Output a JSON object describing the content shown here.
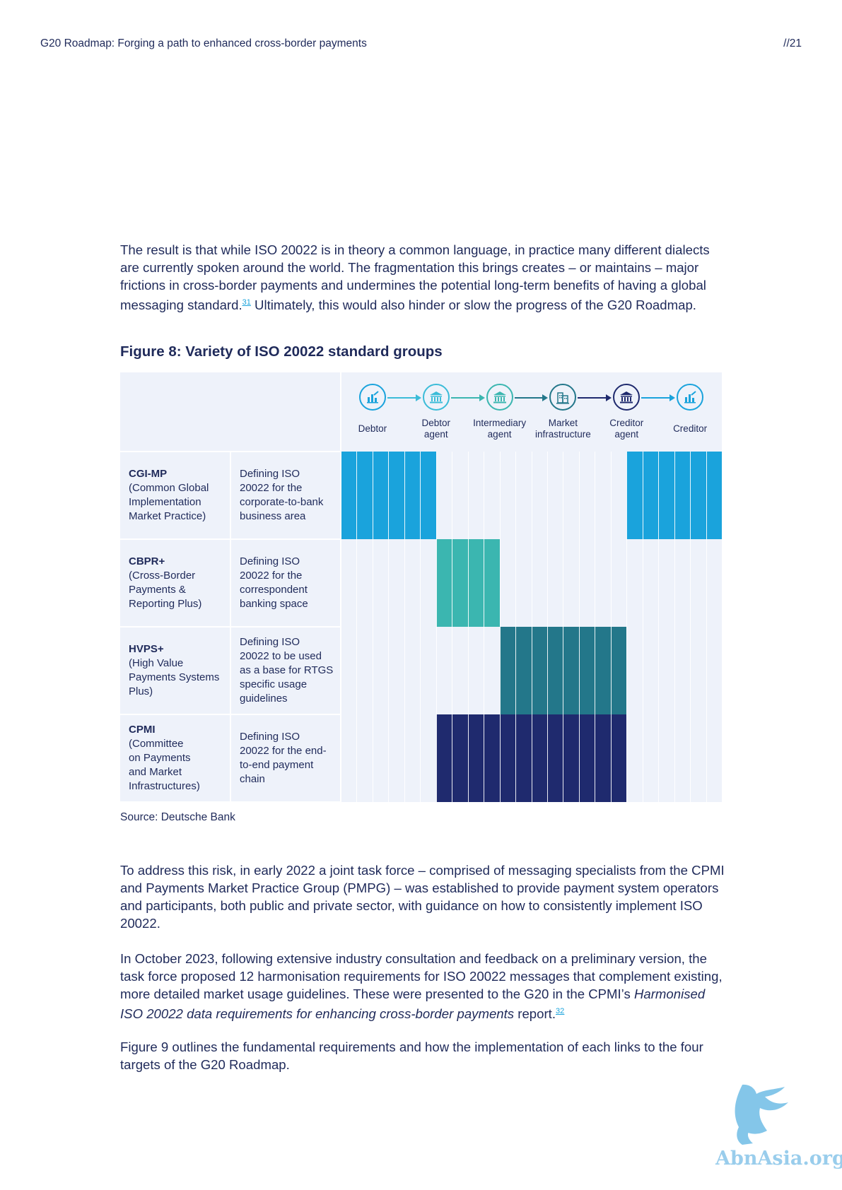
{
  "header": {
    "title": "G20 Roadmap: Forging a path to enhanced cross-border payments",
    "page": "//21"
  },
  "intro": {
    "text_before_ref": "The result is that while ISO 20022 is in theory a common language, in practice many different dialects are currently spoken around the world. The fragmentation this brings creates – or maintains – major frictions in cross-border payments and undermines the potential long-term benefits of having a global messaging standard.",
    "ref": "31",
    "text_after_ref": " Ultimately, this would also hinder or slow the progress of the G20 Roadmap."
  },
  "figure": {
    "title": "Figure 8: Variety of ISO 20022 standard groups",
    "source": "Source: Deutsche Bank",
    "parties": [
      {
        "line1": "Debtor",
        "line2": "",
        "icon": "chart-icon",
        "color": "#1aa3dc"
      },
      {
        "line1": "Debtor",
        "line2": "agent",
        "icon": "bank-icon",
        "color": "#3bbcd8"
      },
      {
        "line1": "Intermediary",
        "line2": "agent",
        "icon": "bank-icon",
        "color": "#3bb6b0"
      },
      {
        "line1": "Market",
        "line2": "infrastructure",
        "icon": "building-icon",
        "color": "#23778a"
      },
      {
        "line1": "Creditor",
        "line2": "agent",
        "icon": "bank-icon",
        "color": "#1f2a6e"
      },
      {
        "line1": "Creditor",
        "line2": "",
        "icon": "chart-icon",
        "color": "#1aa3dc"
      }
    ],
    "groups": [
      {
        "name": "CGI-MP",
        "full": [
          "(Common Global",
          "Implementation",
          "Market Practice)"
        ],
        "desc": [
          "Defining ISO",
          "20022 for the",
          "corporate-to-bank",
          "business area"
        ],
        "color": "#1aa3dc",
        "spans": [
          [
            0,
            6
          ],
          [
            18,
            24
          ]
        ]
      },
      {
        "name": "CBPR+",
        "full": [
          "(Cross-Border",
          "Payments &",
          "Reporting Plus)"
        ],
        "desc": [
          "Defining ISO",
          "20022 for the",
          "correspondent",
          "banking space"
        ],
        "color": "#3bb6b0",
        "spans": [
          [
            6,
            10
          ]
        ]
      },
      {
        "name": "HVPS+",
        "full": [
          "(High Value",
          "Payments Systems",
          "Plus)"
        ],
        "desc": [
          "Defining ISO",
          "20022 to be used",
          "as a base for RTGS",
          "specific usage",
          "guidelines"
        ],
        "color": "#23778a",
        "spans": [
          [
            10,
            18
          ]
        ]
      },
      {
        "name": "CPMI",
        "full": [
          "(Committee",
          "on Payments",
          "and Market",
          "Infrastructures)"
        ],
        "desc": [
          "Defining ISO",
          "20022 for the end-",
          "to-end payment",
          "chain"
        ],
        "color": "#1f2a6e",
        "spans": [
          [
            6,
            18
          ]
        ]
      }
    ]
  },
  "body": {
    "p2": "To address this risk, in early 2022 a joint task force – comprised of messaging specialists from the CPMI and Payments Market Practice Group (PMPG) – was established to provide payment system operators and participants, both public and private sector, with guidance on how to consistently implement ISO 20022.",
    "p3_before": "In October 2023, following extensive industry consultation and feedback on a preliminary version, the task force proposed 12 harmonisation requirements for ISO 20022 messages that complement existing, more detailed market usage guidelines. These were presented to the G20 in the CPMI’s ",
    "p3_italic": "Harmonised ISO 20022 data requirements for enhancing cross-border payments",
    "p3_after": " report.",
    "p3_ref": "32",
    "p4": "Figure 9 outlines the fundamental requirements and how the implementation of each links to the four targets of the G20 Roadmap."
  },
  "watermark": {
    "text": "AbnAsia.org"
  }
}
